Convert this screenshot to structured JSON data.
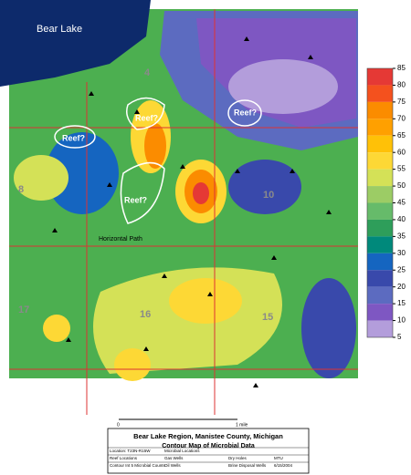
{
  "header": {
    "title": "Bear Lake Region, Manistee County, Michigan",
    "subtitle": "Contour Map of Microbial Data"
  },
  "map": {
    "lake_label": "Bear Lake",
    "reef_labels": [
      "Reef?",
      "Reef?",
      "Reef?",
      "Reef?"
    ],
    "path_label": "Horizontal Path",
    "sections": [
      "4",
      "8",
      "10",
      "16",
      "17",
      "15"
    ]
  },
  "legend": {
    "ticks": [
      85,
      80,
      75,
      70,
      65,
      60,
      55,
      50,
      45,
      40,
      35,
      30,
      25,
      20,
      15,
      10,
      5
    ],
    "colors": [
      "#e53935",
      "#f4511e",
      "#fb8c00",
      "#ffa000",
      "#ffc107",
      "#fdd835",
      "#d4e157",
      "#9ccc65",
      "#66bb6a",
      "#2e9e5a",
      "#00897b",
      "#1565c0",
      "#3949ab",
      "#5c6bc0",
      "#7e57c2",
      "#b39ddb"
    ]
  },
  "scale": {
    "start": "0",
    "end": "1 mile"
  },
  "key": {
    "rows": [
      [
        "Location: T23N-R15W",
        "Microbial Locations",
        "",
        ""
      ],
      [
        "Reef Locations",
        "Gas Wells",
        "Dry Holes",
        "MTU"
      ],
      [
        "Contour Int 5 Microbial Counts",
        "Oil Wells",
        "Brine Disposal Wells",
        "6/15/2004"
      ]
    ]
  }
}
